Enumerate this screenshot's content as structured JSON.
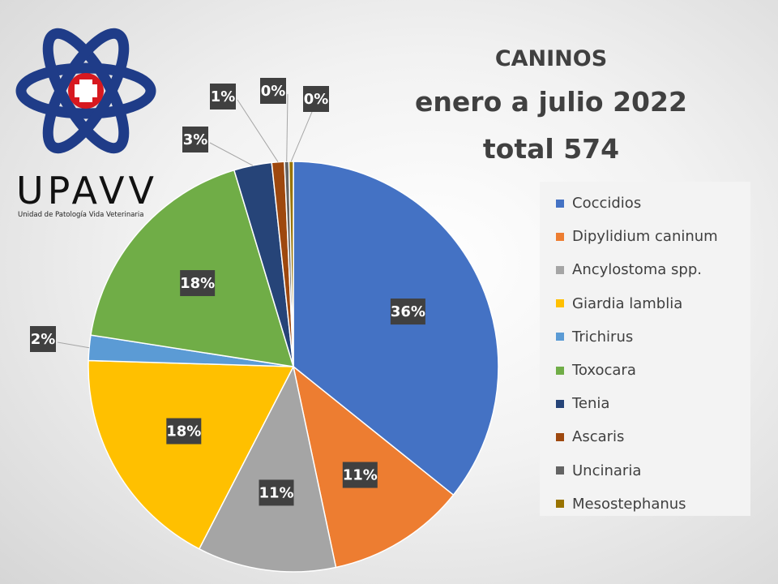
{
  "logo": {
    "name": "UPAVV",
    "subtitle": "Unidad de Patología Vida Veterinaria",
    "colors": {
      "orbit": "#1f3c88",
      "cross_bg": "#d71920",
      "cross": "#ffffff"
    }
  },
  "chart_data": {
    "type": "pie",
    "title_lines": [
      "caninos",
      "enero a julio 2022",
      "total 574"
    ],
    "legend_position": "right",
    "categories": [
      "Coccidios",
      "Dipylidium caninum",
      "Ancylostoma spp.",
      "Giardia lamblia",
      "Trichirus",
      "Toxocara",
      "Tenia",
      "Ascaris",
      "Uncinaria",
      "Mesostephanus"
    ],
    "values": [
      36,
      11,
      11,
      18,
      2,
      18,
      3,
      1,
      0,
      0
    ],
    "labels": [
      "36%",
      "11%",
      "11%",
      "18%",
      "2%",
      "18%",
      "3%",
      "1%",
      "0%",
      "0%"
    ],
    "colors": [
      "#4472c4",
      "#ed7d31",
      "#a5a5a5",
      "#ffc000",
      "#5b9bd5",
      "#70ad47",
      "#264478",
      "#9e480e",
      "#636363",
      "#997300"
    ]
  }
}
